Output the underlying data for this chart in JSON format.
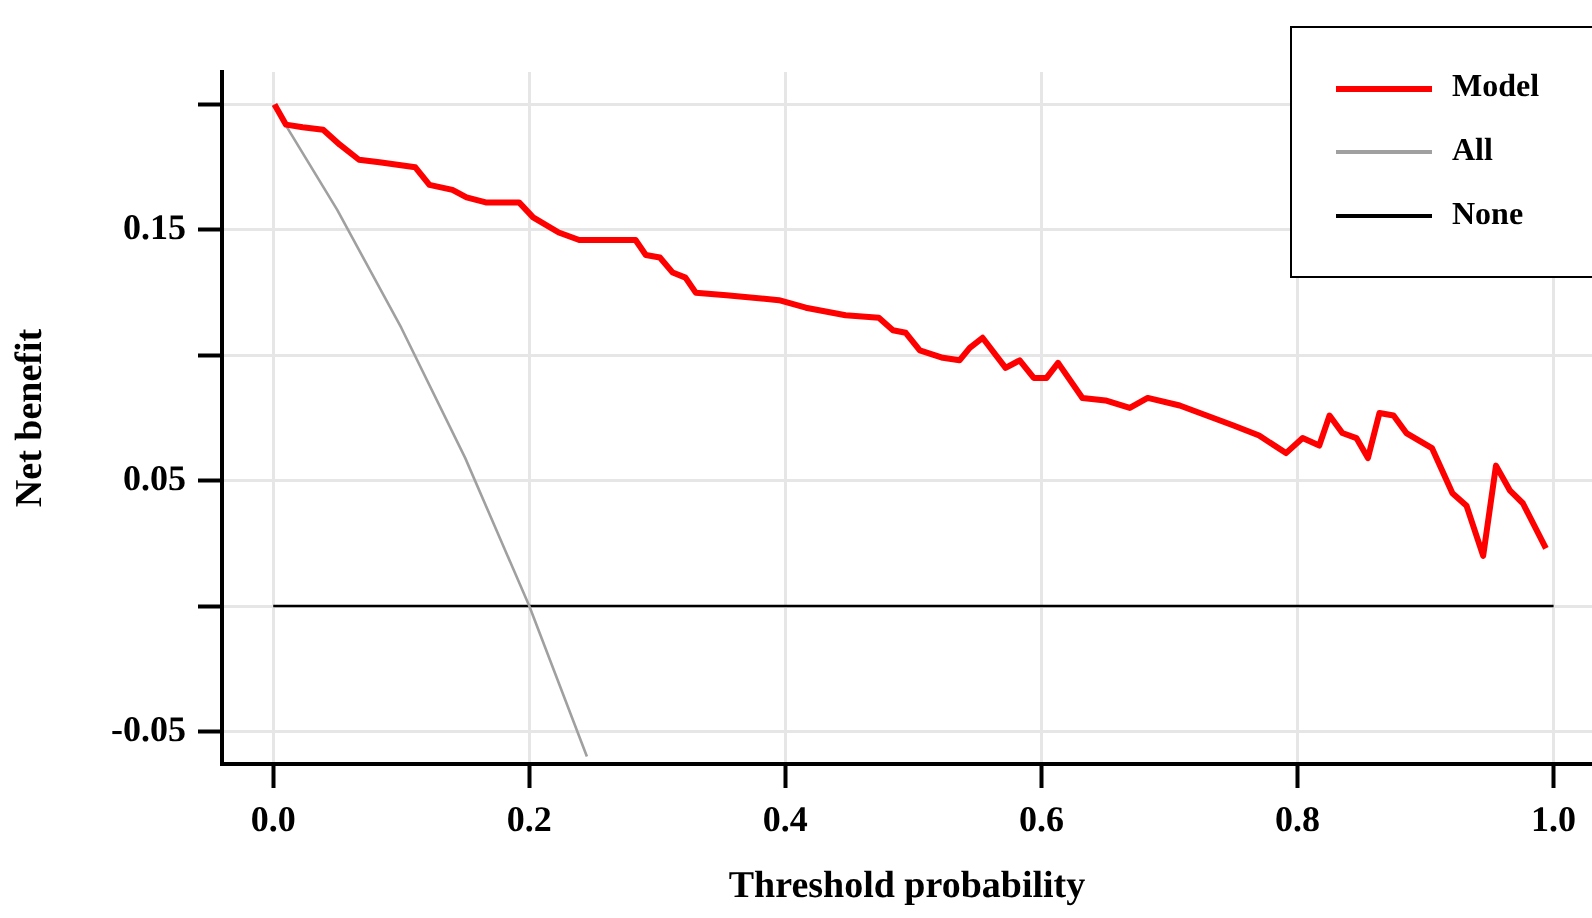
{
  "chart_data": {
    "type": "line",
    "xlabel": "Threshold probability",
    "ylabel": "Net benefit",
    "xlim": [
      -0.04,
      1.03
    ],
    "ylim": [
      -0.063,
      0.213
    ],
    "xticks": [
      {
        "value": 0,
        "label": "0.0"
      },
      0.2,
      0.4,
      0.6,
      0.8,
      {
        "value": 1,
        "label": "1.0"
      }
    ],
    "yticks": [
      {
        "value": 0.2,
        "label": null
      },
      0.15,
      {
        "value": 0.1,
        "label": null
      },
      0.05,
      {
        "value": 0,
        "label": null
      },
      -0.05
    ],
    "grid": true,
    "legend": "top right",
    "marker": "none",
    "line_style": "solid",
    "series": [
      {
        "name": "Model",
        "color": "#ff0000",
        "x": [
          0.001,
          0.01,
          0.023,
          0.039,
          0.052,
          0.067,
          0.083,
          0.111,
          0.122,
          0.14,
          0.151,
          0.166,
          0.192,
          0.203,
          0.223,
          0.239,
          0.283,
          0.291,
          0.302,
          0.312,
          0.322,
          0.33,
          0.354,
          0.395,
          0.416,
          0.447,
          0.473,
          0.484,
          0.494,
          0.505,
          0.523,
          0.536,
          0.544,
          0.554,
          0.572,
          0.583,
          0.594,
          0.604,
          0.613,
          0.632,
          0.65,
          0.669,
          0.683,
          0.708,
          0.729,
          0.75,
          0.77,
          0.791,
          0.804,
          0.817,
          0.825,
          0.835,
          0.846,
          0.855,
          0.864,
          0.875,
          0.885,
          0.905,
          0.921,
          0.932,
          0.945,
          0.955,
          0.966,
          0.976,
          0.994
        ],
        "values": [
          0.2,
          0.192,
          0.191,
          0.19,
          0.184,
          0.178,
          0.177,
          0.175,
          0.168,
          0.166,
          0.163,
          0.161,
          0.161,
          0.155,
          0.149,
          0.146,
          0.146,
          0.14,
          0.139,
          0.133,
          0.131,
          0.125,
          0.124,
          0.122,
          0.119,
          0.116,
          0.115,
          0.11,
          0.109,
          0.102,
          0.099,
          0.098,
          0.103,
          0.107,
          0.095,
          0.098,
          0.091,
          0.091,
          0.097,
          0.083,
          0.082,
          0.079,
          0.083,
          0.08,
          0.076,
          0.072,
          0.068,
          0.061,
          0.067,
          0.064,
          0.076,
          0.069,
          0.067,
          0.059,
          0.077,
          0.076,
          0.069,
          0.063,
          0.045,
          0.04,
          0.02,
          0.056,
          0.046,
          0.041,
          0.023
        ]
      },
      {
        "name": "All",
        "color": "#a0a0a0",
        "x": [
          0,
          0.05,
          0.1,
          0.15,
          0.2,
          0.245
        ],
        "values": [
          0.2,
          0.158,
          0.111,
          0.059,
          0,
          -0.06
        ]
      },
      {
        "name": "None",
        "color": "#000000",
        "x": [
          0,
          1
        ],
        "values": [
          0,
          0
        ]
      }
    ]
  }
}
